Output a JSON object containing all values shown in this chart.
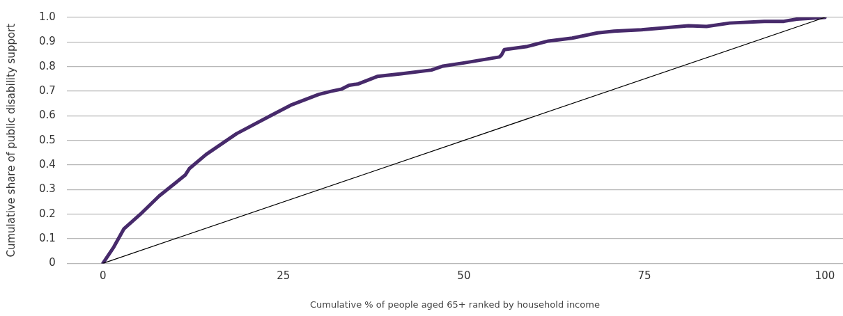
{
  "chart_data": {
    "type": "line",
    "xlabel": "Cumulative % of people aged 65+ ranked by household income",
    "ylabel": "Cumulative share of public disability support",
    "xlim": [
      -5,
      102.5
    ],
    "xticks": [
      0,
      25,
      50,
      75,
      100
    ],
    "ylim": [
      0,
      1
    ],
    "yticks": [
      0,
      0.1,
      0.2,
      0.3,
      0.4,
      0.5,
      0.6,
      0.7,
      0.8,
      0.9,
      {
        "value": 1,
        "label": "1.0"
      }
    ],
    "grid": "y",
    "legend": false,
    "marker": "none",
    "series": [
      {
        "color": "#472a6b",
        "x": [
          0,
          1.5,
          2.9,
          5.2,
          7.8,
          11.4,
          12.0,
          14.3,
          18.5,
          23.4,
          26.0,
          29.9,
          31.5,
          33.1,
          34.1,
          35.4,
          38.0,
          41.3,
          45.5,
          47.1,
          50.0,
          54.9,
          55.2,
          55.6,
          58.8,
          61.7,
          65.0,
          68.5,
          70.8,
          74.6,
          81.1,
          83.6,
          86.8,
          91.6,
          94.3,
          96.1,
          100
        ],
        "values": [
          0,
          0.066,
          0.14,
          0.2,
          0.274,
          0.359,
          0.386,
          0.443,
          0.527,
          0.603,
          0.643,
          0.687,
          0.699,
          0.709,
          0.724,
          0.73,
          0.76,
          0.771,
          0.786,
          0.802,
          0.815,
          0.839,
          0.847,
          0.869,
          0.882,
          0.904,
          0.916,
          0.937,
          0.944,
          0.95,
          0.966,
          0.963,
          0.977,
          0.984,
          0.984,
          0.993,
          1.0
        ]
      },
      {
        "color": "#000000",
        "x": [
          0,
          100
        ],
        "values": [
          0,
          1
        ]
      }
    ]
  }
}
